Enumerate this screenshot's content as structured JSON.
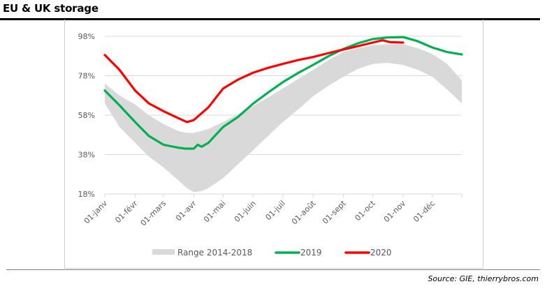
{
  "header": {
    "title": "EU & UK storage"
  },
  "footer": {
    "source": "Source: GIE, thierrybros.com"
  },
  "colors": {
    "range": "#d9d9d9",
    "series_2019": "#00b050",
    "series_2020": "#ff0000",
    "grid": "#d9d9d9",
    "axis_text": "#595959"
  },
  "chart_data": {
    "type": "line",
    "title": "EU & UK storage",
    "xlabel": "",
    "ylabel": "",
    "x_unit": "day_of_year",
    "xlim": [
      1,
      366
    ],
    "ylim": [
      18,
      98
    ],
    "yticks": [
      {
        "value": 98,
        "label": "98%"
      },
      {
        "value": 78,
        "label": "78%"
      },
      {
        "value": 58,
        "label": "58%"
      },
      {
        "value": 38,
        "label": "38%"
      },
      {
        "value": 18,
        "label": "18%"
      }
    ],
    "xticks": [
      {
        "value": 1,
        "label": "01-janv"
      },
      {
        "value": 32,
        "label": "01-févr"
      },
      {
        "value": 61,
        "label": "01-mars"
      },
      {
        "value": 92,
        "label": "01-avr"
      },
      {
        "value": 122,
        "label": "01-mai"
      },
      {
        "value": 153,
        "label": "01-juin"
      },
      {
        "value": 183,
        "label": "01-juil"
      },
      {
        "value": 214,
        "label": "01-août"
      },
      {
        "value": 245,
        "label": "01-sept"
      },
      {
        "value": 275,
        "label": "01-oct"
      },
      {
        "value": 306,
        "label": "01-nov"
      },
      {
        "value": 336,
        "label": "01-déc"
      }
    ],
    "grid": true,
    "legend": {
      "position": "bottom",
      "entries": [
        {
          "name": "Range 2014-2018",
          "kind": "area"
        },
        {
          "name": "2019",
          "kind": "line"
        },
        {
          "name": "2020",
          "kind": "line"
        }
      ]
    },
    "range": {
      "name": "Range 2014-2018",
      "x": [
        1,
        16,
        32,
        46,
        61,
        76,
        85,
        92,
        100,
        107,
        122,
        137,
        153,
        168,
        183,
        199,
        214,
        230,
        245,
        260,
        275,
        290,
        306,
        321,
        336,
        351,
        366
      ],
      "upper": [
        74,
        68,
        63.4,
        58,
        53.5,
        50,
        49,
        49,
        50,
        51,
        54.5,
        58.5,
        62.7,
        67,
        71.5,
        76.5,
        81,
        86,
        90,
        92,
        93.4,
        94,
        94,
        92,
        89,
        84,
        75.7
      ],
      "lower": [
        64,
        52,
        44,
        37,
        31.5,
        25,
        21,
        19,
        19.5,
        21,
        26,
        33,
        40.4,
        47.5,
        54.5,
        61,
        67.6,
        73,
        77.5,
        81.5,
        84,
        84.5,
        83.5,
        81,
        77.5,
        71,
        64
      ]
    },
    "series": [
      {
        "name": "2019",
        "x": [
          1,
          16,
          32,
          46,
          61,
          76,
          84,
          92,
          96,
          100,
          107,
          122,
          137,
          153,
          168,
          183,
          199,
          214,
          230,
          245,
          260,
          275,
          290,
          306,
          321,
          336,
          351,
          366
        ],
        "values": [
          70.5,
          63,
          54.5,
          47.5,
          43,
          41.5,
          41,
          41,
          43,
          42,
          44,
          52,
          57,
          64,
          69.5,
          74.7,
          79.5,
          83.5,
          88,
          91.6,
          94.5,
          96.6,
          97.4,
          97.6,
          95.5,
          92.3,
          90,
          88.8
        ]
      },
      {
        "name": "2020",
        "x": [
          1,
          16,
          32,
          46,
          61,
          76,
          85,
          92,
          107,
          122,
          137,
          153,
          168,
          183,
          199,
          214,
          230,
          245,
          260,
          275,
          285,
          293,
          306
        ],
        "values": [
          88.5,
          81,
          70.5,
          64,
          60,
          56.5,
          54.5,
          55.5,
          62,
          71.5,
          76,
          79.6,
          82,
          84,
          86,
          87.5,
          89.5,
          91.3,
          93,
          94.8,
          96,
          95,
          94.8
        ]
      }
    ]
  }
}
